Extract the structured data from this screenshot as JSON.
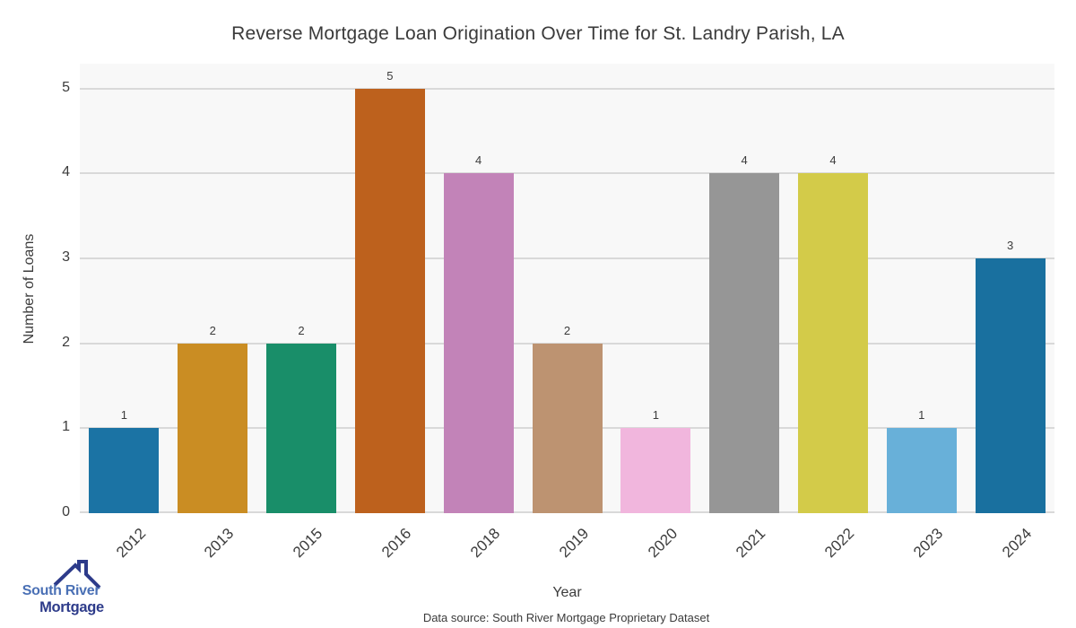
{
  "chart_data": {
    "type": "bar",
    "title": "Reverse Mortgage Loan Origination Over Time for St. Landry Parish, LA",
    "xlabel": "Year",
    "ylabel": "Number of Loans",
    "categories": [
      "2012",
      "2013",
      "2015",
      "2016",
      "2018",
      "2019",
      "2020",
      "2021",
      "2022",
      "2023",
      "2024"
    ],
    "values": [
      1,
      2,
      2,
      5,
      4,
      2,
      1,
      4,
      4,
      1,
      3
    ],
    "bar_colors": [
      "#1b73a4",
      "#ca8d23",
      "#198e69",
      "#bd611d",
      "#c283b8",
      "#bd9371",
      "#f1b6dd",
      "#969696",
      "#d3cb49",
      "#68b0d9",
      "#19709f"
    ],
    "ylim": [
      0,
      5
    ],
    "yticks": [
      0,
      1,
      2,
      3,
      4,
      5
    ],
    "grid": "horizontal gridlines on",
    "legend": "none",
    "plot_bg_color": "#f8f8f8",
    "grid_color": "#d9d9d9",
    "text_color": "#3c3c3c"
  },
  "footer": {
    "source_label": "Data source: South River Mortgage Proprietary Dataset"
  },
  "logo": {
    "line1": "South River",
    "line2": "Mortgage",
    "line1_color": "#4a70b5",
    "line2_color": "#2d3b8a",
    "roof_color": "#2d3b8a",
    "icon": "house-roof-with-chimney-icon"
  }
}
